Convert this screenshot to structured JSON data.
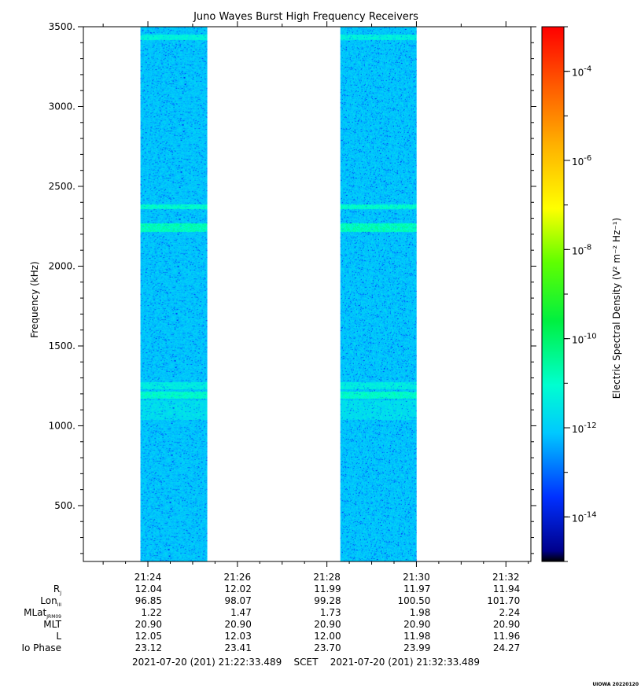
{
  "chart_data": {
    "type": "heatmap",
    "title": "Juno Waves Burst High Frequency Receivers",
    "ylabel": "Frequency (kHz)",
    "ylim": [
      150,
      3500
    ],
    "yticks": [
      500,
      1000,
      1500,
      2000,
      2500,
      3000,
      3500
    ],
    "ytick_labels": [
      "500.",
      "1000.",
      "1500.",
      "2000.",
      "2500.",
      "3000.",
      "3500."
    ],
    "x_start": "2021-07-20 21:22:33.489",
    "x_end": "2021-07-20 21:32:33.489",
    "xtick_labels": [
      "21:24",
      "21:26",
      "21:28",
      "21:30",
      "21:32"
    ],
    "xtick_times": [
      "21:24",
      "21:26",
      "21:28",
      "21:30",
      "21:32"
    ],
    "data_intervals": [
      {
        "start": "21:23:50",
        "end": "21:25:20"
      },
      {
        "start": "21:28:18",
        "end": "21:30:00"
      }
    ],
    "emission_bands_khz": [
      {
        "low": 3420,
        "high": 3455,
        "level": -11.3
      },
      {
        "low": 2360,
        "high": 2390,
        "level": -11.0
      },
      {
        "low": 2215,
        "high": 2270,
        "level": -10.8
      },
      {
        "low": 1230,
        "high": 1275,
        "level": -11.4
      },
      {
        "low": 1170,
        "high": 1215,
        "level": -11.0
      },
      {
        "low": 1040,
        "high": 1160,
        "level": -11.7
      }
    ],
    "background_level": -12.1,
    "colorbar": {
      "label": "Electric Spectral Density (V² m⁻² Hz⁻¹)",
      "scale": "log",
      "range": [
        -15,
        -3
      ],
      "tick_exponents": [
        -14,
        -12,
        -10,
        -8,
        -6,
        -4
      ],
      "tick_base": "10"
    },
    "ephemeris": {
      "footer": "2021-07-20 (201) 21:22:33.489    SCET    2021-07-20 (201) 21:32:33.489",
      "rows": [
        {
          "label": "RJ",
          "values": [
            "12.04",
            "12.02",
            "11.99",
            "11.97",
            "11.94"
          ]
        },
        {
          "label": "LonIII",
          "values": [
            "96.85",
            "98.07",
            "99.28",
            "100.50",
            "101.70"
          ]
        },
        {
          "label": "MLatJRM09",
          "values": [
            "1.22",
            "1.47",
            "1.73",
            "1.98",
            "2.24"
          ]
        },
        {
          "label": "MLT",
          "values": [
            "20.90",
            "20.90",
            "20.90",
            "20.90",
            "20.90"
          ]
        },
        {
          "label": "L",
          "values": [
            "12.05",
            "12.03",
            "12.00",
            "11.98",
            "11.96"
          ]
        },
        {
          "label": "Io Phase",
          "values": [
            "23.12",
            "23.41",
            "23.70",
            "23.99",
            "24.27"
          ]
        }
      ]
    },
    "stamp": "UIOWA 20220120"
  }
}
